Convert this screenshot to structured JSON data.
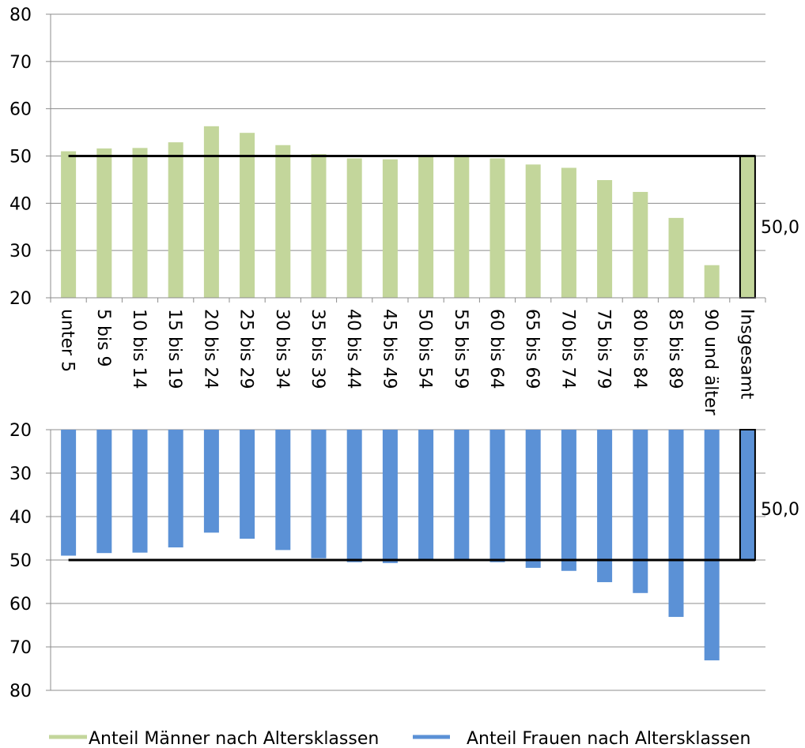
{
  "chart_data": [
    {
      "type": "bar",
      "categories": [
        "unter 5",
        "5 bis 9",
        "10 bis 14",
        "15 bis 19",
        "20 bis 24",
        "25 bis 29",
        "30 bis 34",
        "35 bis 39",
        "40 bis 44",
        "45 bis 49",
        "50 bis 54",
        "55 bis 59",
        "60 bis 64",
        "65 bis 69",
        "70 bis 74",
        "75 bis 79",
        "80 bis 84",
        "85 bis 89",
        "90 und älter",
        "Insgesamt"
      ],
      "series": [
        {
          "name": "Anteil Männer nach Altersklassen",
          "values": [
            51.0,
            51.6,
            51.7,
            52.9,
            56.3,
            54.9,
            52.3,
            50.4,
            49.5,
            49.3,
            50.0,
            49.9,
            49.5,
            48.2,
            47.5,
            44.9,
            42.4,
            36.9,
            26.9,
            50.0
          ]
        }
      ],
      "ylim": [
        20,
        80
      ],
      "yticks": [
        20,
        30,
        40,
        50,
        60,
        70,
        80
      ],
      "reference_line": 50,
      "total_label": "50,0",
      "grid": true,
      "bar_color": "#c3d69b",
      "reference_color": "#000000"
    },
    {
      "type": "bar",
      "orientation": "inverted",
      "categories": [
        "unter 5",
        "5 bis 9",
        "10 bis 14",
        "15 bis 19",
        "20 bis 24",
        "25 bis 29",
        "30 bis 34",
        "35 bis 39",
        "40 bis 44",
        "45 bis 49",
        "50 bis 54",
        "55 bis 59",
        "60 bis 64",
        "65 bis 69",
        "70 bis 74",
        "75 bis 79",
        "80 bis 84",
        "85 bis 89",
        "90 und älter",
        "Insgesamt"
      ],
      "series": [
        {
          "name": "Anteil Frauen nach Altersklassen",
          "values": [
            49.0,
            48.4,
            48.3,
            47.1,
            43.7,
            45.1,
            47.7,
            49.6,
            50.5,
            50.7,
            50.0,
            50.1,
            50.5,
            51.8,
            52.5,
            55.1,
            57.6,
            63.1,
            73.1,
            50.0
          ]
        }
      ],
      "ylim": [
        20,
        80
      ],
      "yticks": [
        20,
        30,
        40,
        50,
        60,
        70,
        80
      ],
      "reference_line": 50,
      "total_label": "50,0",
      "grid": true,
      "bar_color": "#5b91d6",
      "reference_color": "#000000"
    }
  ],
  "legend": {
    "placement": "bottom",
    "items": [
      {
        "label": "Anteil Männer nach Altersklassen",
        "color": "#c3d69b"
      },
      {
        "label": "Anteil Frauen nach Altersklassen",
        "color": "#5b91d6"
      }
    ]
  }
}
